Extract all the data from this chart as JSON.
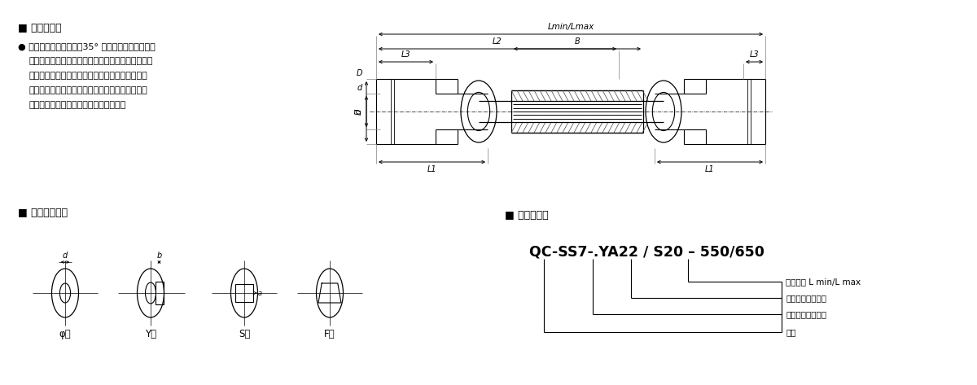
{
  "bg_color": "#ffffff",
  "line_color": "#000000",
  "features_title": "■ 结构特点：",
  "bullet": "●",
  "line1": "本标准每节转动角度＜35° ，截面承载力大，传递",
  "line2": "精度高，方便更快捷的装卸。可根据要求开键槽孔，",
  "line3": "四方孔，六方孔等球和套筒接头取决于偏转角度和",
  "line4": "负载，关节部位不应受到轴向拉力。保证无故障运",
  "line5": "行，接头部位必须经常进行充分的润滑。",
  "hole_types_title": "■ 成品孔型式：",
  "hole_types": [
    "φ型",
    "Y型",
    "S型",
    "F型"
  ],
  "label_title": "■ 标记示例：",
  "label_example": "QC-SS7-.YA22 / S20 – 550/650",
  "annot1": "安装长度 L min/L max",
  "annot2": "从动轴孔径及类型",
  "annot3": "主动轴孔径及类型",
  "annot4": "型号"
}
